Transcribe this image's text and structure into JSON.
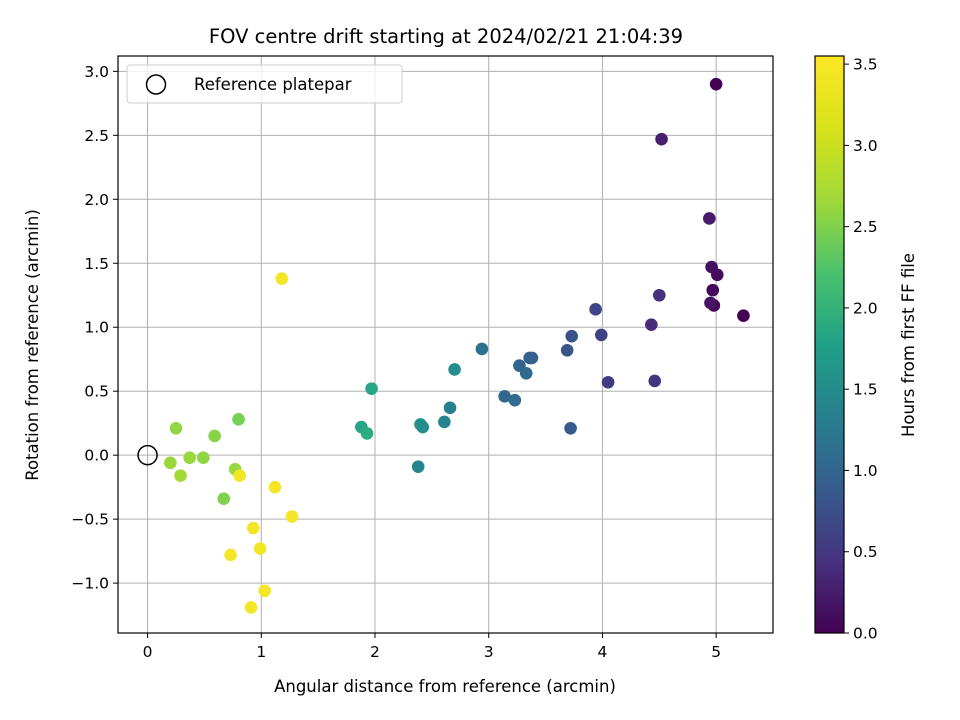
{
  "chart_data": {
    "type": "scatter",
    "title": "FOV centre drift starting at 2024/02/21 21:04:39",
    "xlabel": "Angular distance from reference (arcmin)",
    "ylabel": "Rotation from reference (arcmin)",
    "xlim": [
      -0.26,
      5.5
    ],
    "ylim": [
      -1.39,
      3.12
    ],
    "xticks": [
      0,
      1,
      2,
      3,
      4,
      5
    ],
    "yticks": [
      -1.0,
      -0.5,
      0.0,
      0.5,
      1.0,
      1.5,
      2.0,
      2.5,
      3.0
    ],
    "grid": true,
    "legend": {
      "location": "upper-left",
      "entries": [
        "Reference platepar"
      ]
    },
    "reference_point": {
      "x": 0.0,
      "y": 0.0,
      "marker": "hollow-circle"
    },
    "colorbar": {
      "label": "Hours from first FF file",
      "colormap": "viridis",
      "range": [
        0.0,
        3.55
      ],
      "ticks": [
        0.0,
        0.5,
        1.0,
        1.5,
        2.0,
        2.5,
        3.0,
        3.5
      ]
    },
    "points": [
      {
        "x": 5.0,
        "y": 2.9,
        "c": 0.0
      },
      {
        "x": 5.24,
        "y": 1.09,
        "c": 0.0
      },
      {
        "x": 4.98,
        "y": 1.17,
        "c": 0.05
      },
      {
        "x": 4.97,
        "y": 1.29,
        "c": 0.08
      },
      {
        "x": 5.01,
        "y": 1.41,
        "c": 0.1
      },
      {
        "x": 4.96,
        "y": 1.47,
        "c": 0.15
      },
      {
        "x": 4.95,
        "y": 1.19,
        "c": 0.2
      },
      {
        "x": 4.94,
        "y": 1.85,
        "c": 0.25
      },
      {
        "x": 4.52,
        "y": 2.47,
        "c": 0.3
      },
      {
        "x": 4.5,
        "y": 1.25,
        "c": 0.5
      },
      {
        "x": 4.43,
        "y": 1.02,
        "c": 0.45
      },
      {
        "x": 4.46,
        "y": 0.58,
        "c": 0.55
      },
      {
        "x": 4.05,
        "y": 0.57,
        "c": 0.65
      },
      {
        "x": 3.99,
        "y": 0.94,
        "c": 0.7
      },
      {
        "x": 3.94,
        "y": 1.14,
        "c": 0.75
      },
      {
        "x": 3.73,
        "y": 0.93,
        "c": 0.9
      },
      {
        "x": 3.69,
        "y": 0.82,
        "c": 0.95
      },
      {
        "x": 3.72,
        "y": 0.21,
        "c": 1.0
      },
      {
        "x": 3.38,
        "y": 0.76,
        "c": 1.05
      },
      {
        "x": 3.36,
        "y": 0.76,
        "c": 1.1
      },
      {
        "x": 3.27,
        "y": 0.7,
        "c": 1.15
      },
      {
        "x": 3.33,
        "y": 0.64,
        "c": 1.2
      },
      {
        "x": 3.14,
        "y": 0.46,
        "c": 1.2
      },
      {
        "x": 3.23,
        "y": 0.43,
        "c": 1.25
      },
      {
        "x": 2.94,
        "y": 0.83,
        "c": 1.3
      },
      {
        "x": 2.7,
        "y": 0.67,
        "c": 1.75
      },
      {
        "x": 2.66,
        "y": 0.37,
        "c": 1.55
      },
      {
        "x": 2.61,
        "y": 0.26,
        "c": 1.6
      },
      {
        "x": 2.4,
        "y": 0.24,
        "c": 1.8
      },
      {
        "x": 2.42,
        "y": 0.22,
        "c": 1.75
      },
      {
        "x": 2.38,
        "y": -0.09,
        "c": 1.6
      },
      {
        "x": 1.97,
        "y": 0.52,
        "c": 2.1
      },
      {
        "x": 1.88,
        "y": 0.22,
        "c": 2.1
      },
      {
        "x": 1.93,
        "y": 0.17,
        "c": 2.2
      },
      {
        "x": 0.8,
        "y": 0.28,
        "c": 2.8
      },
      {
        "x": 0.59,
        "y": 0.15,
        "c": 2.9
      },
      {
        "x": 0.25,
        "y": 0.21,
        "c": 2.95
      },
      {
        "x": 0.37,
        "y": -0.02,
        "c": 3.0
      },
      {
        "x": 0.49,
        "y": -0.02,
        "c": 2.95
      },
      {
        "x": 0.2,
        "y": -0.06,
        "c": 3.0
      },
      {
        "x": 0.29,
        "y": -0.16,
        "c": 3.05
      },
      {
        "x": 0.77,
        "y": -0.11,
        "c": 3.0
      },
      {
        "x": 0.67,
        "y": -0.34,
        "c": 2.85
      },
      {
        "x": 0.81,
        "y": -0.16,
        "c": 3.5
      },
      {
        "x": 1.18,
        "y": 1.38,
        "c": 3.5
      },
      {
        "x": 1.12,
        "y": -0.25,
        "c": 3.5
      },
      {
        "x": 1.27,
        "y": -0.48,
        "c": 3.5
      },
      {
        "x": 0.93,
        "y": -0.57,
        "c": 3.5
      },
      {
        "x": 0.99,
        "y": -0.73,
        "c": 3.5
      },
      {
        "x": 0.73,
        "y": -0.78,
        "c": 3.5
      },
      {
        "x": 1.03,
        "y": -1.06,
        "c": 3.5
      },
      {
        "x": 0.91,
        "y": -1.19,
        "c": 3.5
      }
    ]
  }
}
